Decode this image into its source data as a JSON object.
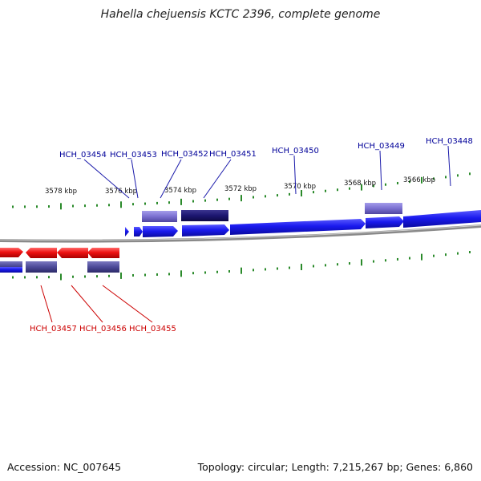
{
  "title": "Hahella chejuensis KCTC 2396, complete genome",
  "footer": {
    "accession": "Accession: NC_007645",
    "summary": "Topology: circular; Length: 7,215,267 bp; Genes: 6,860"
  },
  "colors": {
    "forward_gene": "#1a1aee",
    "reverse_gene": "#ee1111",
    "operon_light": "#7a6fd0",
    "operon_dark": "#1c1670",
    "operon_mid": "#4c4a98",
    "tick": "#2a8a2a",
    "backbone": "#8a8a8a",
    "forward_label": "#000099",
    "reverse_label": "#cc0000"
  },
  "ticks": [
    {
      "label": "3578 kbp"
    },
    {
      "label": "3576 kbp"
    },
    {
      "label": "3574 kbp"
    },
    {
      "label": "3572 kbp"
    },
    {
      "label": "3570 kbp"
    },
    {
      "label": "3568 kbp"
    },
    {
      "label": "3566 kbp"
    }
  ],
  "forward_labels": [
    {
      "name": "HCH_03454"
    },
    {
      "name": "HCH_03453"
    },
    {
      "name": "HCH_03452"
    },
    {
      "name": "HCH_03451"
    },
    {
      "name": "HCH_03450"
    },
    {
      "name": "HCH_03449"
    },
    {
      "name": "HCH_03448"
    }
  ],
  "reverse_labels": [
    {
      "name": "HCH_03457"
    },
    {
      "name": "HCH_03456"
    },
    {
      "name": "HCH_03455"
    }
  ]
}
